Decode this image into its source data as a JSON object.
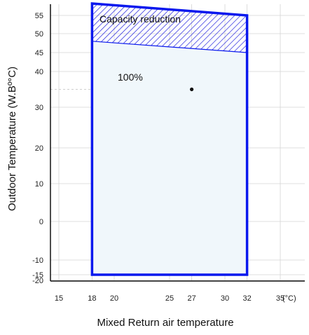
{
  "chart_data": {
    "type": "area",
    "xlabel": "Mixed Return air temperature",
    "ylabel": "Outdoor Temperature (W.Bº°C)",
    "x_unit_label": "(°C)",
    "x_ticks": [
      15,
      18,
      20,
      25,
      27,
      30,
      32,
      35
    ],
    "y_ticks": [
      -20,
      -15,
      -10,
      0,
      10,
      20,
      30,
      40,
      45,
      50,
      55
    ],
    "xlim": [
      13.5,
      37
    ],
    "grid": true,
    "regions": [
      {
        "label": "100%",
        "polygon": [
          [
            18,
            -15
          ],
          [
            32,
            -15
          ],
          [
            32,
            45
          ],
          [
            18,
            48
          ]
        ],
        "fill": "#f0f7fb"
      },
      {
        "label": "Capacity reduction",
        "polygon": [
          [
            18,
            48
          ],
          [
            32,
            45
          ],
          [
            32,
            55
          ],
          [
            18,
            57.5
          ]
        ],
        "fill": "hatched",
        "color": "#1f1fe0"
      }
    ],
    "outline": [
      [
        18,
        -15
      ],
      [
        32,
        -15
      ],
      [
        32,
        55
      ],
      [
        18,
        57.5
      ]
    ],
    "points": [
      {
        "x": 27,
        "y": 35
      }
    ],
    "colors": {
      "boundary": "#0a18ee",
      "hatch": "#2020dd",
      "grid": "#d4d4d4"
    }
  }
}
